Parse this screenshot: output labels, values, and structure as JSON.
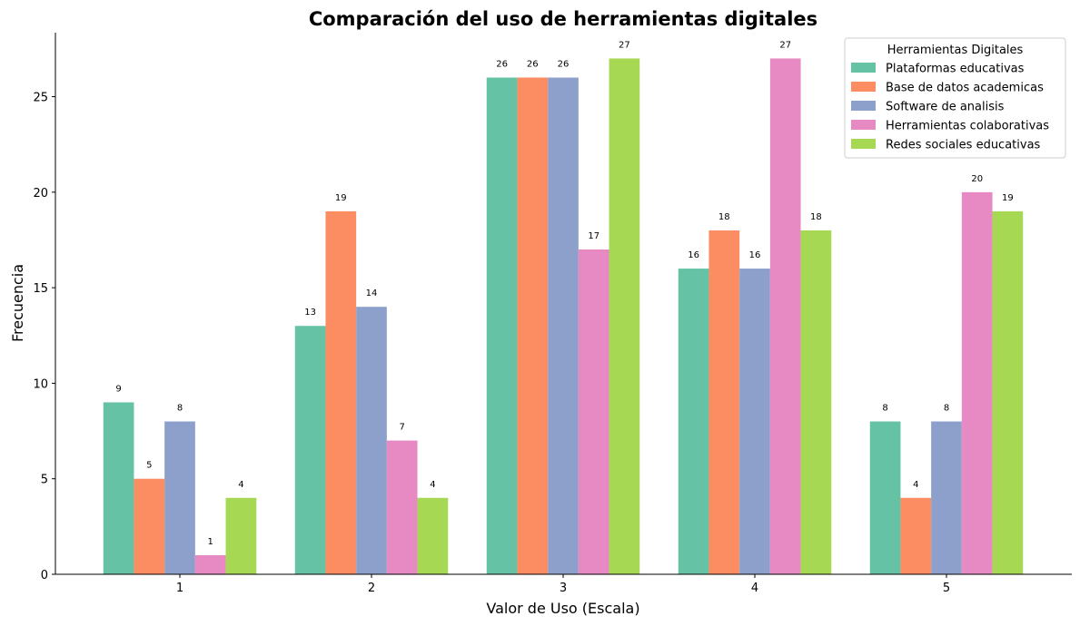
{
  "chart_data": {
    "type": "bar",
    "title": "Comparación del uso de herramientas digitales",
    "xlabel": "Valor de Uso (Escala)",
    "ylabel": "Frecuencia",
    "categories": [
      "1",
      "2",
      "3",
      "4",
      "5"
    ],
    "ylim": [
      0,
      28.35
    ],
    "yticks": [
      "0",
      "5",
      "10",
      "15",
      "20",
      "25"
    ],
    "grid": false,
    "legend": {
      "title": "Herramientas Digitales",
      "placement": "top-right"
    },
    "series": [
      {
        "name": "Plataformas educativas",
        "color": "#66c2a5",
        "values": [
          9,
          13,
          26,
          16,
          8
        ]
      },
      {
        "name": "Base de datos academicas",
        "color": "#fc8d62",
        "values": [
          5,
          19,
          26,
          18,
          4
        ]
      },
      {
        "name": "Software de analisis",
        "color": "#8da0cb",
        "values": [
          8,
          14,
          26,
          16,
          8
        ]
      },
      {
        "name": "Herramientas colaborativas",
        "color": "#e78ac3",
        "values": [
          1,
          7,
          17,
          27,
          20
        ]
      },
      {
        "name": "Redes sociales educativas",
        "color": "#a6d854",
        "values": [
          4,
          4,
          27,
          18,
          19
        ]
      }
    ]
  }
}
